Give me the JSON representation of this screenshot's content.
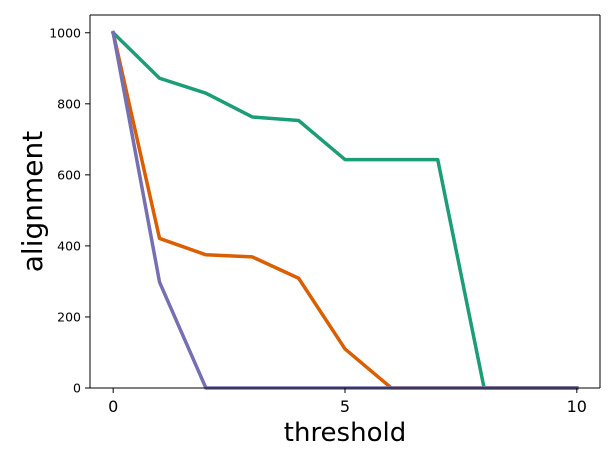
{
  "chart_data": {
    "type": "line",
    "title": "",
    "xlabel": "threshold",
    "ylabel": "alignment",
    "xlim": [
      -0.5,
      10.5
    ],
    "ylim": [
      0,
      1050
    ],
    "x_ticks": [
      0,
      5,
      10
    ],
    "y_ticks": [
      0,
      200,
      400,
      600,
      800,
      1000
    ],
    "x_tick_labels": [
      "0",
      "5",
      "10"
    ],
    "y_tick_labels": [
      "0",
      "200",
      "400",
      "600",
      "800",
      "1000"
    ],
    "grid": false,
    "legend": "none",
    "series": [
      {
        "color": "#1b9e77",
        "x": [
          0,
          1,
          2,
          3,
          4,
          5,
          6,
          7,
          8,
          9,
          10
        ],
        "y": [
          1000,
          872,
          830,
          763,
          753,
          643,
          643,
          643,
          0,
          0,
          0
        ]
      },
      {
        "color": "#d95f02",
        "x": [
          0,
          1,
          2,
          3,
          4,
          5,
          6,
          7,
          8,
          9,
          10
        ],
        "y": [
          1000,
          421,
          375,
          369,
          309,
          110,
          0,
          0,
          0,
          0,
          0
        ]
      },
      {
        "color": "#7570b3",
        "x": [
          0,
          1,
          2,
          3,
          4,
          5,
          6,
          7,
          8,
          9,
          10
        ],
        "y": [
          1000,
          298,
          0,
          0,
          0,
          0,
          0,
          0,
          0,
          0,
          0
        ]
      }
    ]
  }
}
